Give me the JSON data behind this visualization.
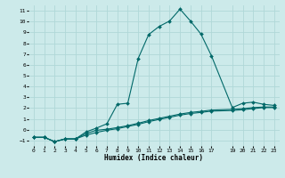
{
  "xlabel": "Humidex (Indice chaleur)",
  "bg_color": "#cceaea",
  "grid_color": "#b0d8d8",
  "line_color": "#006868",
  "xlim": [
    -0.5,
    23.5
  ],
  "ylim": [
    -1.5,
    11.5
  ],
  "yticks": [
    -1,
    0,
    1,
    2,
    3,
    4,
    5,
    6,
    7,
    8,
    9,
    10,
    11
  ],
  "xticks": [
    0,
    1,
    2,
    3,
    4,
    5,
    6,
    7,
    8,
    9,
    10,
    11,
    12,
    13,
    14,
    15,
    16,
    17,
    19,
    20,
    21,
    22,
    23
  ],
  "series1_x": [
    0,
    1,
    2,
    3,
    4,
    5,
    6,
    7,
    8,
    9,
    10,
    11,
    12,
    13,
    14,
    15,
    16,
    17,
    19,
    20,
    21,
    22,
    23
  ],
  "series1_y": [
    -0.7,
    -0.7,
    -1.1,
    -0.85,
    -0.85,
    -0.5,
    -0.25,
    -0.05,
    0.1,
    0.3,
    0.5,
    0.75,
    0.95,
    1.15,
    1.35,
    1.5,
    1.6,
    1.72,
    1.78,
    1.85,
    1.95,
    2.05,
    2.05
  ],
  "series2_x": [
    0,
    1,
    2,
    3,
    4,
    5,
    6,
    7,
    8,
    9,
    10,
    11,
    12,
    13,
    14,
    15,
    16,
    17,
    19,
    20,
    21,
    22,
    23
  ],
  "series2_y": [
    -0.7,
    -0.7,
    -1.1,
    -0.85,
    -0.85,
    -0.35,
    -0.05,
    0.05,
    0.2,
    0.38,
    0.6,
    0.85,
    1.05,
    1.25,
    1.45,
    1.6,
    1.7,
    1.82,
    1.88,
    1.95,
    2.05,
    2.1,
    2.1
  ],
  "series3_x": [
    0,
    1,
    2,
    3,
    4,
    5,
    6,
    7,
    8,
    9,
    10,
    11,
    12,
    13,
    14,
    15,
    16,
    17,
    19,
    20,
    21,
    22,
    23
  ],
  "series3_y": [
    -0.7,
    -0.7,
    -1.1,
    -0.85,
    -0.85,
    -0.2,
    0.15,
    0.55,
    2.35,
    2.45,
    6.6,
    8.8,
    9.55,
    10.05,
    11.15,
    10.05,
    8.85,
    6.85,
    2.05,
    2.45,
    2.55,
    2.35,
    2.25
  ]
}
